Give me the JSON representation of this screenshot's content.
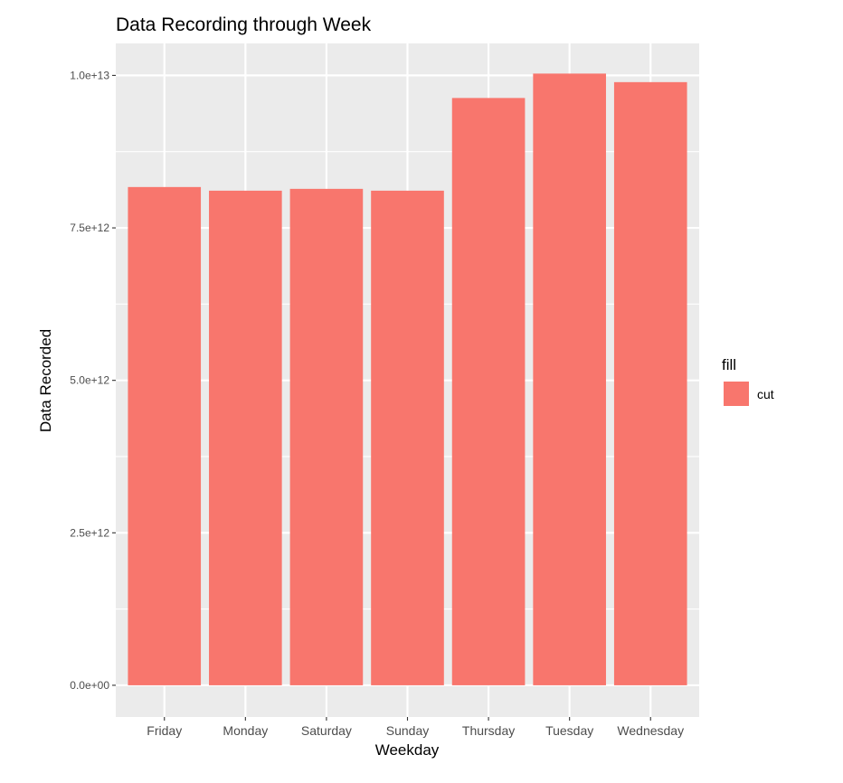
{
  "chart_data": {
    "type": "bar",
    "title": "Data Recording through Week",
    "xlabel": "Weekday",
    "ylabel": "Data Recorded",
    "categories": [
      "Friday",
      "Monday",
      "Saturday",
      "Sunday",
      "Thursday",
      "Tuesday",
      "Wednesday"
    ],
    "series": [
      {
        "name": "cut",
        "values": [
          8170000000000.0,
          8110000000000.0,
          8140000000000.0,
          8110000000000.0,
          9630000000000.0,
          10030000000000.0,
          9890000000000.0
        ]
      }
    ],
    "ylim": [
      -520000000000.0,
      10525000000000.0
    ],
    "y_ticks": [
      0,
      2500000000000.0,
      5000000000000.0,
      7500000000000.0,
      10000000000000.0
    ],
    "y_tick_labels": [
      "0.0e+00",
      "2.5e+12",
      "5.0e+12",
      "7.5e+12",
      "1.0e+13"
    ],
    "grid": true,
    "legend": {
      "title": "fill",
      "position": "right"
    }
  },
  "colors": {
    "bar": "#F8766D",
    "panel": "#EBEBEB",
    "grid_major": "#FFFFFF",
    "tick_text": "#4D4D4D"
  }
}
